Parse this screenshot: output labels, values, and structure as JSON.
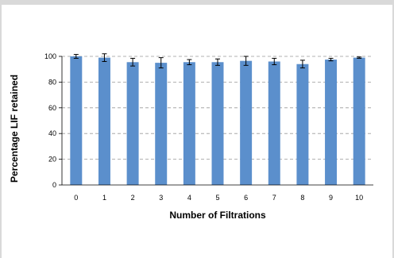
{
  "chart_data": {
    "type": "bar",
    "title": "",
    "xlabel": "Number of Filtrations",
    "ylabel": "Percentage LIF retained",
    "categories": [
      "0",
      "1",
      "2",
      "3",
      "4",
      "5",
      "6",
      "7",
      "8",
      "9",
      "10"
    ],
    "values": [
      100,
      99,
      95.5,
      95,
      95.5,
      95.5,
      96.5,
      96,
      94,
      97.5,
      99
    ],
    "errors": [
      1.5,
      3,
      3,
      4,
      2,
      2.5,
      3.5,
      2.5,
      3,
      1,
      0.5
    ],
    "ylim": [
      0,
      100
    ],
    "yticks": [
      "0",
      "20",
      "40",
      "60",
      "80",
      "100"
    ],
    "grid": true,
    "bar_color": "#5b8fcc",
    "grid_color": "#999999"
  }
}
